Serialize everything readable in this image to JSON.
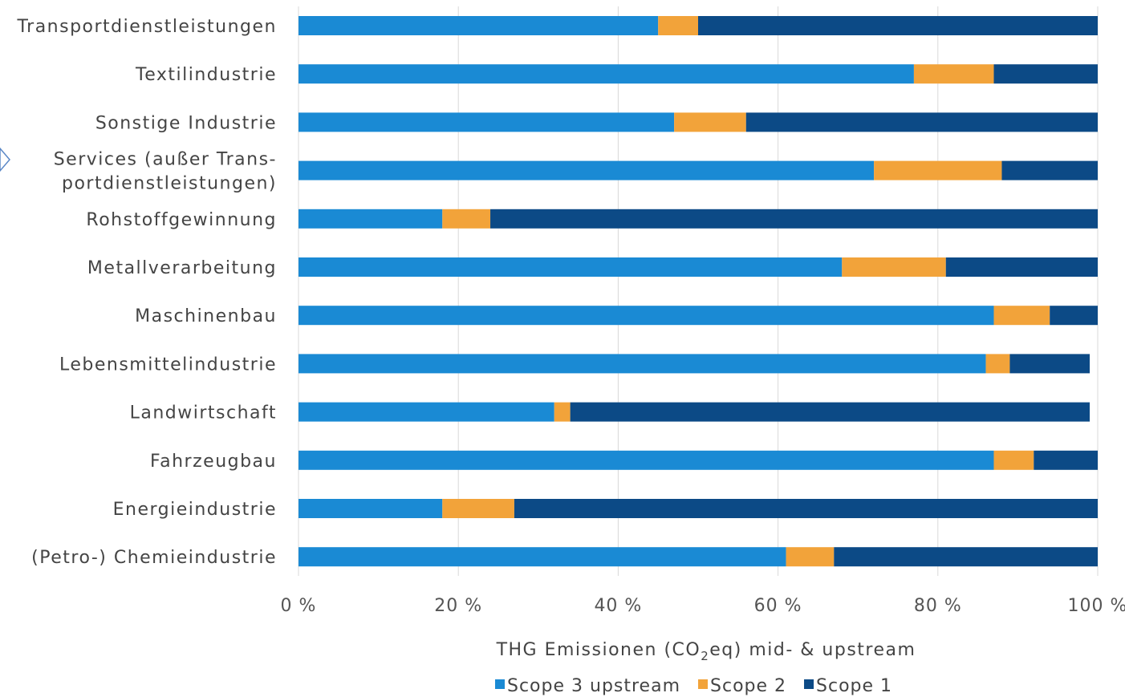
{
  "chart_data": {
    "type": "bar",
    "orientation": "horizontal",
    "stacked": true,
    "categories": [
      "Transportdienstleistungen",
      "Textilindustrie",
      "Sonstige Industrie",
      "Services (außer Trans-|portdienstleistungen)",
      "Rohstoffgewinnung",
      "Metallverarbeitung",
      "Maschinenbau",
      "Lebensmittelindustrie",
      "Landwirtschaft",
      "Fahrzeugbau",
      "Energieindustrie",
      "(Petro-) Chemieindustrie"
    ],
    "series": [
      {
        "name": "Scope 3 upstream",
        "color": "#1a8ad4",
        "values": [
          45,
          77,
          47,
          72,
          18,
          68,
          87,
          86,
          32,
          87,
          18,
          61
        ]
      },
      {
        "name": "Scope 2",
        "color": "#f2a33a",
        "values": [
          5,
          10,
          9,
          16,
          6,
          13,
          7,
          3,
          2,
          5,
          9,
          6
        ]
      },
      {
        "name": "Scope 1",
        "color": "#0c4a86",
        "values": [
          50,
          13,
          44,
          12,
          76,
          19,
          6,
          10,
          65,
          8,
          73,
          33
        ]
      }
    ],
    "xticks": [
      "0 %",
      "20 %",
      "40 %",
      "60 %",
      "80 %",
      "100 %"
    ],
    "xlim": [
      0,
      100
    ],
    "xlabel_main": "THG Emissionen (CO",
    "xlabel_sub": "2",
    "xlabel_rest": "eq) mid- & upstream",
    "grid": true,
    "legend_position": "bottom"
  }
}
